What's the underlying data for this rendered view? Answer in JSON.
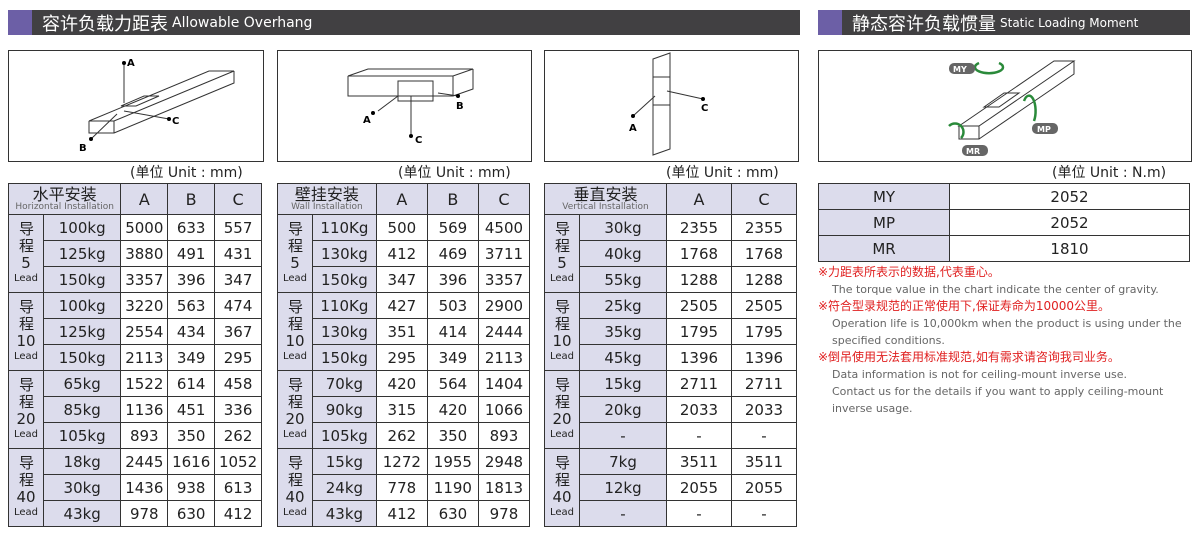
{
  "header_left": {
    "zh": "容许负载力距表",
    "en": "Allowable Overhang"
  },
  "header_right": {
    "zh": "静态容许负载惯量",
    "en": "Static Loading Moment"
  },
  "unit_mm": "(单位 Unit : mm)",
  "unit_nm": "(单位 Unit : N.m)",
  "figure_labels": {
    "a": "A",
    "b": "B",
    "c": "C",
    "my": "MY",
    "mp": "MP",
    "mr": "MR"
  },
  "tables": [
    {
      "title": "水平安装",
      "subtitle": "Horizontal Installation",
      "cols": [
        "A",
        "B",
        "C"
      ],
      "groups": [
        {
          "lead": "5",
          "rows": [
            [
              "100kg",
              "5000",
              "633",
              "557"
            ],
            [
              "125kg",
              "3880",
              "491",
              "431"
            ],
            [
              "150kg",
              "3357",
              "396",
              "347"
            ]
          ]
        },
        {
          "lead": "10",
          "rows": [
            [
              "100kg",
              "3220",
              "563",
              "474"
            ],
            [
              "125kg",
              "2554",
              "434",
              "367"
            ],
            [
              "150kg",
              "2113",
              "349",
              "295"
            ]
          ]
        },
        {
          "lead": "20",
          "rows": [
            [
              "65kg",
              "1522",
              "614",
              "458"
            ],
            [
              "85kg",
              "1136",
              "451",
              "336"
            ],
            [
              "105kg",
              "893",
              "350",
              "262"
            ]
          ]
        },
        {
          "lead": "40",
          "rows": [
            [
              "18kg",
              "2445",
              "1616",
              "1052"
            ],
            [
              "30kg",
              "1436",
              "938",
              "613"
            ],
            [
              "43kg",
              "978",
              "630",
              "412"
            ]
          ]
        }
      ]
    },
    {
      "title": "壁挂安装",
      "subtitle": "Wall Installation",
      "cols": [
        "A",
        "B",
        "C"
      ],
      "groups": [
        {
          "lead": "5",
          "rows": [
            [
              "110Kg",
              "500",
              "569",
              "4500"
            ],
            [
              "130kg",
              "412",
              "469",
              "3711"
            ],
            [
              "150kg",
              "347",
              "396",
              "3357"
            ]
          ]
        },
        {
          "lead": "10",
          "rows": [
            [
              "110Kg",
              "427",
              "503",
              "2900"
            ],
            [
              "130kg",
              "351",
              "414",
              "2444"
            ],
            [
              "150kg",
              "295",
              "349",
              "2113"
            ]
          ]
        },
        {
          "lead": "20",
          "rows": [
            [
              "70kg",
              "420",
              "564",
              "1404"
            ],
            [
              "90kg",
              "315",
              "420",
              "1066"
            ],
            [
              "105kg",
              "262",
              "350",
              "893"
            ]
          ]
        },
        {
          "lead": "40",
          "rows": [
            [
              "15kg",
              "1272",
              "1955",
              "2948"
            ],
            [
              "24kg",
              "778",
              "1190",
              "1813"
            ],
            [
              "43kg",
              "412",
              "630",
              "978"
            ]
          ]
        }
      ]
    },
    {
      "title": "垂直安装",
      "subtitle": "Vertical Installation",
      "cols": [
        "A",
        "C"
      ],
      "groups": [
        {
          "lead": "5",
          "rows": [
            [
              "30kg",
              "2355",
              "2355"
            ],
            [
              "40kg",
              "1768",
              "1768"
            ],
            [
              "55kg",
              "1288",
              "1288"
            ]
          ]
        },
        {
          "lead": "10",
          "rows": [
            [
              "25kg",
              "2505",
              "2505"
            ],
            [
              "35kg",
              "1795",
              "1795"
            ],
            [
              "45kg",
              "1396",
              "1396"
            ]
          ]
        },
        {
          "lead": "20",
          "rows": [
            [
              "15kg",
              "2711",
              "2711"
            ],
            [
              "20kg",
              "2033",
              "2033"
            ],
            [
              "-",
              "-",
              "-"
            ]
          ]
        },
        {
          "lead": "40",
          "rows": [
            [
              "7kg",
              "3511",
              "3511"
            ],
            [
              "12kg",
              "2055",
              "2055"
            ],
            [
              "-",
              "-",
              "-"
            ]
          ]
        }
      ]
    }
  ],
  "lead_zh": "导程",
  "lead_en": "Lead",
  "moment": [
    {
      "label": "MY",
      "value": "2052"
    },
    {
      "label": "MP",
      "value": "2052"
    },
    {
      "label": "MR",
      "value": "1810"
    }
  ],
  "notes": [
    {
      "zh": "※力距表所表示的数据,代表重心。",
      "en": [
        "The torque value in the chart indicate the center of gravity."
      ]
    },
    {
      "zh": "※符合型录规范的正常使用下,保证寿命为10000公里。",
      "en": [
        "Operation life is 10,000km when the product is using under the",
        "specified conditions."
      ]
    },
    {
      "zh": "※倒吊使用无法套用标准规范,如有需求请咨询我司业务。",
      "en": [
        "Data information is not for ceiling-mount inverse use.",
        "Contact us for the details if you want to apply ceiling-mount",
        "inverse usage."
      ]
    }
  ]
}
